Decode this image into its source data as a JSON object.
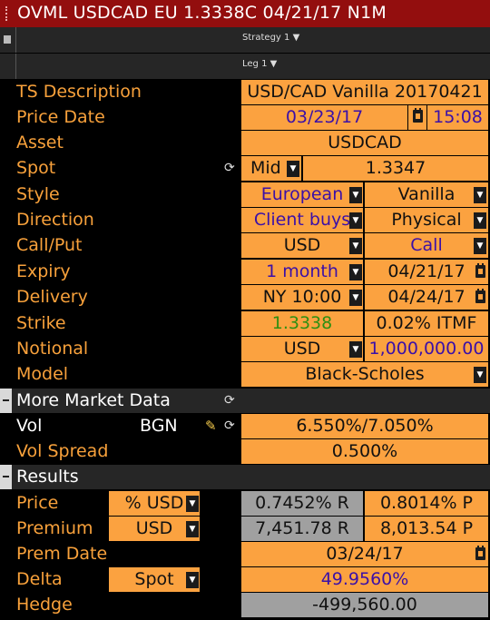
{
  "window": {
    "title": "OVML USDCAD EU 1.3338C 04/21/17 N1M"
  },
  "toolbar": {
    "strategy": "Strategy 1",
    "leg": "Leg 1"
  },
  "rows": {
    "ts_description": {
      "label": "TS Description",
      "value": "USD/CAD Vanilla 20170421"
    },
    "price_date": {
      "label": "Price Date",
      "date": "03/23/17",
      "time": "15:08"
    },
    "asset": {
      "label": "Asset",
      "value": "USDCAD"
    },
    "spot": {
      "label": "Spot",
      "mode": "Mid",
      "value": "1.3347"
    },
    "style": {
      "label": "Style",
      "exercise": "European",
      "type": "Vanilla"
    },
    "direction": {
      "label": "Direction",
      "side": "Client buys",
      "settlement": "Physical"
    },
    "call_put": {
      "label": "Call/Put",
      "ccy": "USD",
      "option": "Call"
    },
    "expiry": {
      "label": "Expiry",
      "tenor": "1 month",
      "date": "04/21/17"
    },
    "delivery": {
      "label": "Delivery",
      "cut": "NY 10:00",
      "date": "04/24/17"
    },
    "strike": {
      "label": "Strike",
      "value": "1.3338",
      "moneyness": "0.02% ITMF"
    },
    "notional": {
      "label": "Notional",
      "ccy": "USD",
      "amount": "1,000,000.00"
    },
    "model": {
      "label": "Model",
      "value": "Black-Scholes"
    }
  },
  "market_data": {
    "section": "More Market Data",
    "vol": {
      "label": "Vol",
      "source": "BGN",
      "value": "6.550%/7.050%"
    },
    "vol_spread": {
      "label": "Vol Spread",
      "value": "0.500%"
    }
  },
  "results": {
    "section": "Results",
    "price": {
      "label": "Price",
      "unit": "% USD",
      "bid": "0.7452% R",
      "ask": "0.8014% P"
    },
    "premium": {
      "label": "Premium",
      "unit": "USD",
      "bid": "7,451.78 R",
      "ask": "8,013.54 P"
    },
    "prem_date": {
      "label": "Prem Date",
      "value": "03/24/17"
    },
    "delta": {
      "label": "Delta",
      "unit": "Spot",
      "value": "49.9560%"
    },
    "hedge": {
      "label": "Hedge",
      "value": "-499,560.00"
    }
  },
  "colors": {
    "title_bar": "#930e0e",
    "label_orange": "#f8a13b",
    "field_orange": "#fba240",
    "field_gray": "#a0a0a0",
    "purple_text": "#3b10a8",
    "green_text": "#2e8f12"
  },
  "icons": [
    "grip-icon",
    "doc-icon",
    "chevron-down-icon",
    "calendar-icon",
    "refresh-icon",
    "pencil-icon",
    "collapse-icon"
  ]
}
